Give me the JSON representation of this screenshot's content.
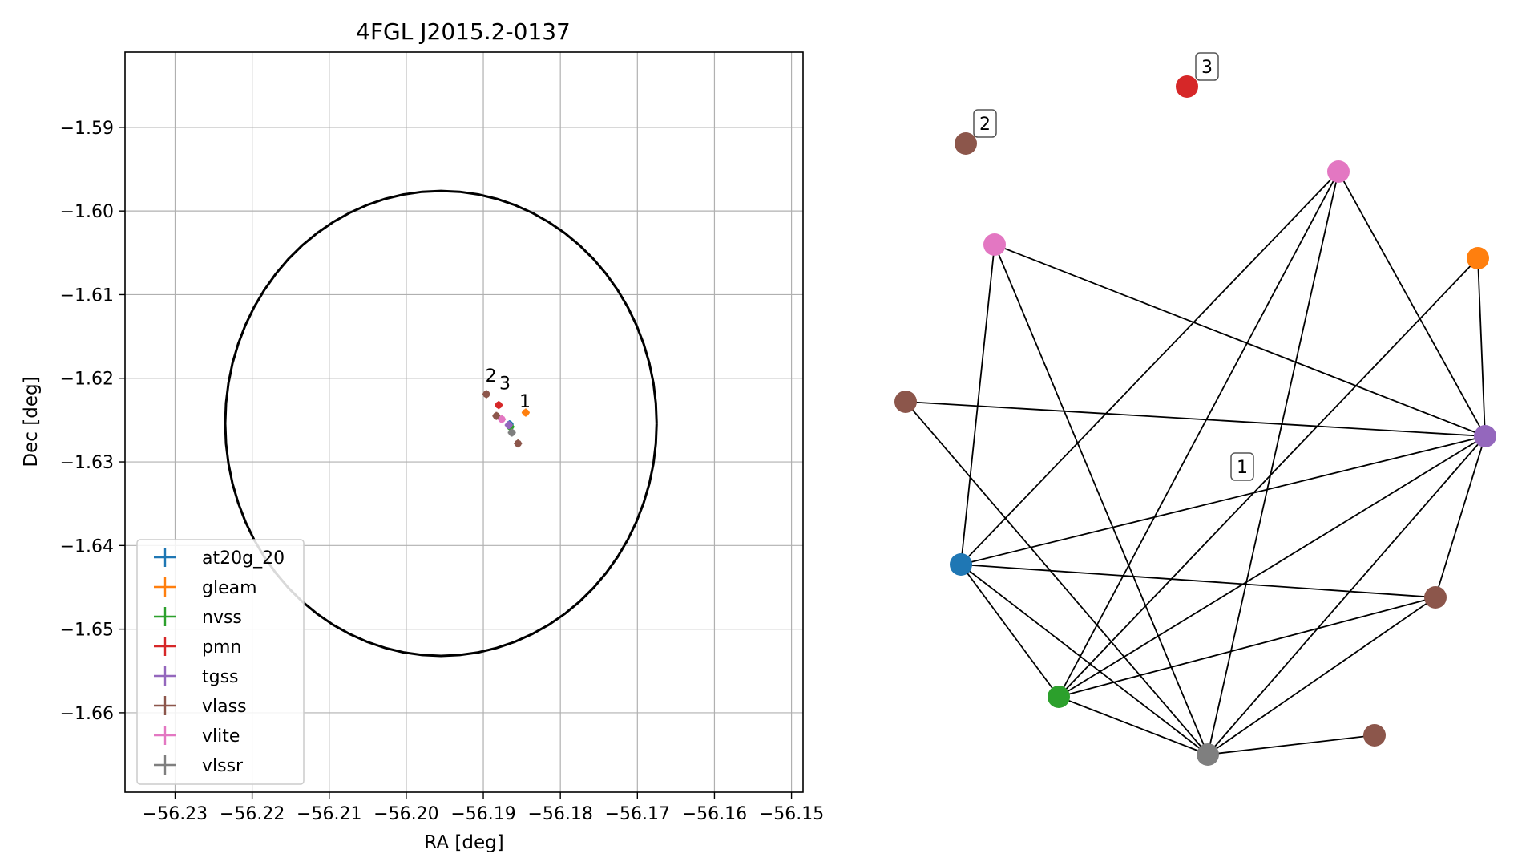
{
  "chart_data": [
    {
      "type": "scatter",
      "title": "4FGL J2015.2-0137",
      "xlabel": "RA [deg]",
      "ylabel": "Dec [deg]",
      "xlim": [
        -56.2365,
        -56.1485
      ],
      "ylim": [
        -1.6695,
        -1.581
      ],
      "xticks": [
        -56.23,
        -56.22,
        -56.21,
        -56.2,
        -56.19,
        -56.18,
        -56.17,
        -56.16,
        -56.15
      ],
      "yticks": [
        -1.59,
        -1.6,
        -1.61,
        -1.62,
        -1.63,
        -1.64,
        -1.65,
        -1.66
      ],
      "xtick_labels": [
        "−56.23",
        "−56.22",
        "−56.21",
        "−56.20",
        "−56.19",
        "−56.18",
        "−56.17",
        "−56.16",
        "−56.15"
      ],
      "ytick_labels": [
        "−1.59",
        "−1.60",
        "−1.61",
        "−1.62",
        "−1.63",
        "−1.64",
        "−1.65",
        "−1.66"
      ],
      "grid": true,
      "legend_position": "lower-left",
      "error_ellipse": {
        "center": [
          -56.1955,
          -1.6254
        ],
        "semi_axis_ra": 0.028,
        "semi_axis_dec": 0.0278
      },
      "series": [
        {
          "name": "at20g_20",
          "color": "#1f77b4",
          "points": [
            [
              -56.1866,
              -1.6255
            ]
          ]
        },
        {
          "name": "gleam",
          "color": "#ff7f0e",
          "points": [
            [
              -56.1845,
              -1.6241
            ]
          ]
        },
        {
          "name": "nvss",
          "color": "#2ca02c",
          "points": [
            [
              -56.1865,
              -1.6258
            ]
          ]
        },
        {
          "name": "pmn",
          "color": "#d62728",
          "points": [
            [
              -56.188,
              -1.6232
            ]
          ]
        },
        {
          "name": "tgss",
          "color": "#9467bd",
          "points": [
            [
              -56.1867,
              -1.6256
            ]
          ]
        },
        {
          "name": "vlass",
          "color": "#8c564b",
          "points": [
            [
              -56.1896,
              -1.6219
            ],
            [
              -56.1883,
              -1.6245
            ],
            [
              -56.1855,
              -1.6278
            ]
          ]
        },
        {
          "name": "vlite",
          "color": "#e377c2",
          "points": [
            [
              -56.1876,
              -1.6249
            ]
          ]
        },
        {
          "name": "vlssr",
          "color": "#7f7f7f",
          "points": [
            [
              -56.1863,
              -1.6265
            ]
          ]
        }
      ],
      "annotations": [
        {
          "text": "2",
          "x": -56.189,
          "y": -1.6204
        },
        {
          "text": "3",
          "x": -56.1872,
          "y": -1.6213
        },
        {
          "text": "1",
          "x": -56.1846,
          "y": -1.6235
        }
      ]
    },
    {
      "type": "network",
      "nodes": [
        {
          "id": 0,
          "color": "#1f77b4"
        },
        {
          "id": 1,
          "color": "#ff7f0e"
        },
        {
          "id": 2,
          "color": "#2ca02c"
        },
        {
          "id": 3,
          "color": "#d62728"
        },
        {
          "id": 4,
          "color": "#9467bd"
        },
        {
          "id": 5,
          "color": "#8c564b"
        },
        {
          "id": 6,
          "color": "#8c564b"
        },
        {
          "id": 7,
          "color": "#8c564b"
        },
        {
          "id": 8,
          "color": "#8c564b"
        },
        {
          "id": 9,
          "color": "#e377c2"
        },
        {
          "id": 10,
          "color": "#e377c2"
        },
        {
          "id": 11,
          "color": "#7f7f7f"
        }
      ],
      "edges": [
        [
          9,
          0
        ],
        [
          9,
          4
        ],
        [
          9,
          11
        ],
        [
          10,
          0
        ],
        [
          10,
          2
        ],
        [
          10,
          4
        ],
        [
          10,
          11
        ],
        [
          5,
          4
        ],
        [
          5,
          11
        ],
        [
          0,
          4
        ],
        [
          0,
          6
        ],
        [
          0,
          2
        ],
        [
          0,
          11
        ],
        [
          1,
          2
        ],
        [
          1,
          4
        ],
        [
          2,
          4
        ],
        [
          2,
          6
        ],
        [
          2,
          11
        ],
        [
          4,
          6
        ],
        [
          4,
          11
        ],
        [
          6,
          11
        ],
        [
          11,
          8
        ]
      ],
      "labels": [
        {
          "text": "2",
          "node": 7
        },
        {
          "text": "3",
          "node": 3
        },
        {
          "text": "1",
          "node": null
        }
      ]
    }
  ]
}
